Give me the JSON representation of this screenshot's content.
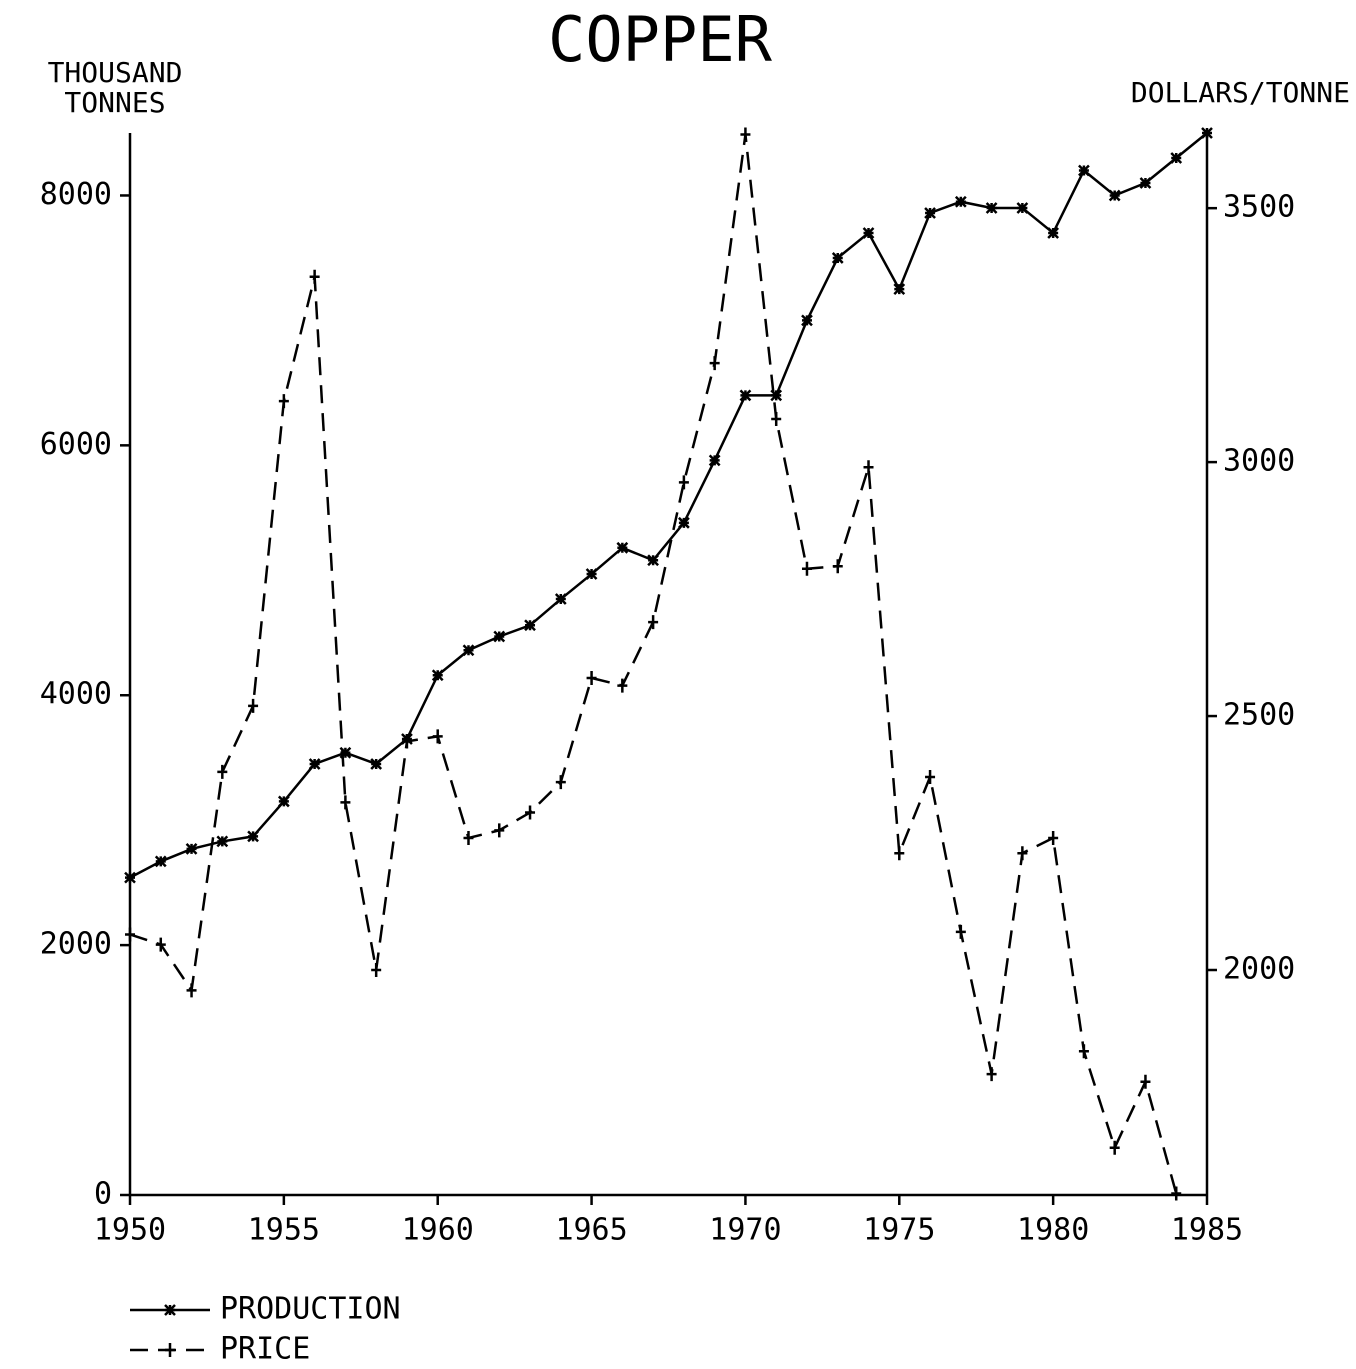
{
  "chart_data": {
    "type": "line",
    "title": "COPPER",
    "y_label": [
      "THOUSAND",
      "TONNES"
    ],
    "y2_label": "DOLLARS/TONNE",
    "x": [
      1950,
      1951,
      1952,
      1953,
      1954,
      1955,
      1956,
      1957,
      1958,
      1959,
      1960,
      1961,
      1962,
      1963,
      1964,
      1965,
      1966,
      1967,
      1968,
      1969,
      1970,
      1971,
      1972,
      1973,
      1974,
      1975,
      1976,
      1977,
      1978,
      1979,
      1980,
      1981,
      1982,
      1983,
      1984,
      1985
    ],
    "series": [
      {
        "name": "PRODUCTION",
        "color": "#000000",
        "dash": "solid",
        "marker": "asterisk",
        "values": [
          2540,
          2670,
          2770,
          2830,
          2870,
          3150,
          3450,
          3540,
          3450,
          3650,
          4160,
          4360,
          4470,
          4560,
          4770,
          4970,
          5180,
          5080,
          5380,
          5880,
          6400,
          6400,
          7000,
          7500,
          7700,
          7250,
          7860,
          7950,
          7900,
          7900,
          7700,
          8200,
          8000,
          8100,
          8300,
          8500
        ]
      },
      {
        "name": "PRICE",
        "color": "#000000",
        "dash": "dashed",
        "marker": "plus",
        "axis": "y2",
        "values": [
          2070,
          2050,
          1960,
          2390,
          2520,
          3120,
          3365,
          2330,
          2000,
          2450,
          2460,
          2260,
          2275,
          2310,
          2370,
          2575,
          2560,
          2685,
          2960,
          3195,
          3645,
          3085,
          2790,
          2795,
          2990,
          2230,
          2380,
          2075,
          1795,
          2230,
          2260,
          1840,
          1650,
          1780,
          1560,
          null
        ]
      }
    ],
    "xlim": [
      1950,
      1985
    ],
    "xticks": [
      1950,
      1955,
      1960,
      1965,
      1970,
      1975,
      1980,
      1985
    ],
    "ylim": [
      0,
      8500
    ],
    "yticks": [
      0,
      2000,
      4000,
      6000,
      8000
    ],
    "y2lim": [
      1557,
      3648
    ],
    "y2ticks": [
      2000,
      2500,
      3000,
      3500
    ],
    "grid": false
  }
}
